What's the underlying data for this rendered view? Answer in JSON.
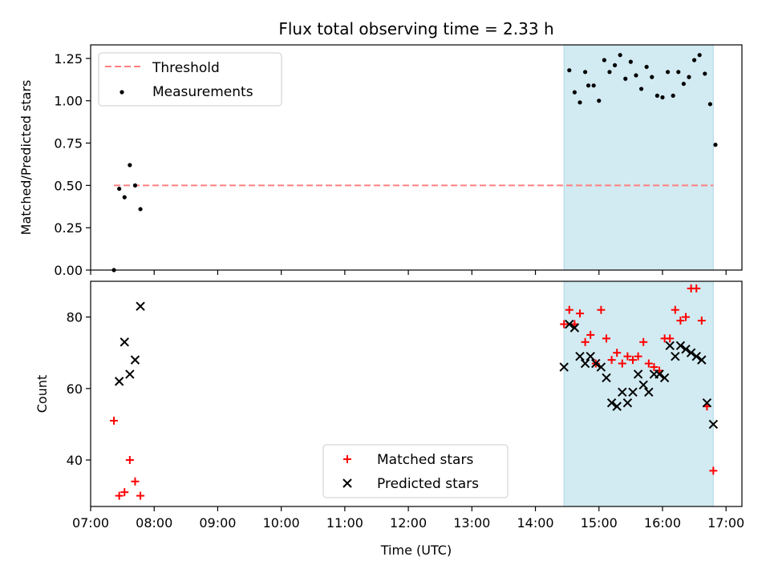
{
  "title": "Flux total observing time = 2.33 h",
  "colors": {
    "threshold": "#ff7f7f",
    "measurement": "#000000",
    "span": "#add8e6",
    "matched": "#ff0000",
    "predicted": "#000000"
  },
  "chart_data": [
    {
      "type": "scatter",
      "panel": "top",
      "ylabel": "Matched/Predicted stars",
      "xlabel": "",
      "xlim": [
        "07:00",
        "17:15"
      ],
      "ylim": [
        0,
        1.33
      ],
      "yticks": [
        0.0,
        0.25,
        0.5,
        0.75,
        1.0,
        1.25
      ],
      "ytick_labels": [
        "0.00",
        "0.25",
        "0.50",
        "0.75",
        "1.00",
        "1.25"
      ],
      "legend_position": "top-left",
      "highlight_span": [
        "14:27",
        "16:48"
      ],
      "threshold": {
        "name": "Threshold",
        "y": 0.5,
        "x_range": [
          "07:22",
          "16:48"
        ]
      },
      "series": [
        {
          "name": "Measurements",
          "points": [
            [
              "07:22",
              0.0
            ],
            [
              "07:27",
              0.48
            ],
            [
              "07:32",
              0.43
            ],
            [
              "07:37",
              0.62
            ],
            [
              "07:42",
              0.5
            ],
            [
              "07:47",
              0.36
            ],
            [
              "14:32",
              1.18
            ],
            [
              "14:37",
              1.05
            ],
            [
              "14:42",
              0.99
            ],
            [
              "14:47",
              1.17
            ],
            [
              "14:50",
              1.09
            ],
            [
              "14:55",
              1.09
            ],
            [
              "15:00",
              1.0
            ],
            [
              "15:05",
              1.24
            ],
            [
              "15:10",
              1.17
            ],
            [
              "15:15",
              1.21
            ],
            [
              "15:20",
              1.27
            ],
            [
              "15:25",
              1.13
            ],
            [
              "15:30",
              1.23
            ],
            [
              "15:35",
              1.15
            ],
            [
              "15:40",
              1.07
            ],
            [
              "15:45",
              1.2
            ],
            [
              "15:50",
              1.14
            ],
            [
              "15:55",
              1.03
            ],
            [
              "16:00",
              1.02
            ],
            [
              "16:05",
              1.17
            ],
            [
              "16:10",
              1.03
            ],
            [
              "16:15",
              1.17
            ],
            [
              "16:20",
              1.1
            ],
            [
              "16:25",
              1.14
            ],
            [
              "16:30",
              1.24
            ],
            [
              "16:35",
              1.27
            ],
            [
              "16:40",
              1.16
            ],
            [
              "16:45",
              0.98
            ],
            [
              "16:50",
              0.74
            ]
          ]
        }
      ]
    },
    {
      "type": "scatter",
      "panel": "bottom",
      "ylabel": "Count",
      "xlabel": "Time (UTC)",
      "xlim": [
        "07:00",
        "17:15"
      ],
      "ylim": [
        27,
        90
      ],
      "yticks": [
        40,
        60,
        80
      ],
      "xticks": [
        "07:00",
        "08:00",
        "09:00",
        "10:00",
        "11:00",
        "12:00",
        "13:00",
        "14:00",
        "15:00",
        "16:00",
        "17:00"
      ],
      "legend_position": "bottom-center",
      "highlight_span": [
        "14:27",
        "16:48"
      ],
      "series": [
        {
          "name": "Matched stars",
          "points": [
            [
              "07:22",
              51
            ],
            [
              "07:27",
              30
            ],
            [
              "07:32",
              31
            ],
            [
              "07:37",
              40
            ],
            [
              "07:42",
              34
            ],
            [
              "07:47",
              30
            ],
            [
              "14:27",
              78
            ],
            [
              "14:32",
              82
            ],
            [
              "14:37",
              78
            ],
            [
              "14:42",
              81
            ],
            [
              "14:47",
              73
            ],
            [
              "14:52",
              75
            ],
            [
              "14:57",
              67
            ],
            [
              "15:02",
              82
            ],
            [
              "15:07",
              74
            ],
            [
              "15:12",
              68
            ],
            [
              "15:17",
              70
            ],
            [
              "15:22",
              67
            ],
            [
              "15:27",
              69
            ],
            [
              "15:32",
              68
            ],
            [
              "15:37",
              69
            ],
            [
              "15:42",
              73
            ],
            [
              "15:47",
              67
            ],
            [
              "15:52",
              66
            ],
            [
              "15:57",
              65
            ],
            [
              "16:02",
              74
            ],
            [
              "16:07",
              74
            ],
            [
              "16:12",
              82
            ],
            [
              "16:17",
              79
            ],
            [
              "16:22",
              80
            ],
            [
              "16:27",
              88
            ],
            [
              "16:32",
              88
            ],
            [
              "16:37",
              79
            ],
            [
              "16:42",
              55
            ],
            [
              "16:48",
              37
            ]
          ]
        },
        {
          "name": "Predicted stars",
          "points": [
            [
              "07:27",
              62
            ],
            [
              "07:32",
              73
            ],
            [
              "07:37",
              64
            ],
            [
              "07:42",
              68
            ],
            [
              "07:47",
              83
            ],
            [
              "14:27",
              66
            ],
            [
              "14:32",
              78
            ],
            [
              "14:37",
              77
            ],
            [
              "14:42",
              69
            ],
            [
              "14:47",
              67
            ],
            [
              "14:52",
              69
            ],
            [
              "14:57",
              67
            ],
            [
              "15:02",
              66
            ],
            [
              "15:07",
              63
            ],
            [
              "15:12",
              56
            ],
            [
              "15:17",
              55
            ],
            [
              "15:22",
              59
            ],
            [
              "15:27",
              56
            ],
            [
              "15:32",
              59
            ],
            [
              "15:37",
              64
            ],
            [
              "15:42",
              61
            ],
            [
              "15:47",
              59
            ],
            [
              "15:52",
              64
            ],
            [
              "15:57",
              64
            ],
            [
              "16:02",
              63
            ],
            [
              "16:07",
              72
            ],
            [
              "16:12",
              69
            ],
            [
              "16:17",
              72
            ],
            [
              "16:22",
              71
            ],
            [
              "16:27",
              70
            ],
            [
              "16:32",
              69
            ],
            [
              "16:37",
              68
            ],
            [
              "16:42",
              56
            ],
            [
              "16:48",
              50
            ]
          ]
        }
      ]
    }
  ]
}
